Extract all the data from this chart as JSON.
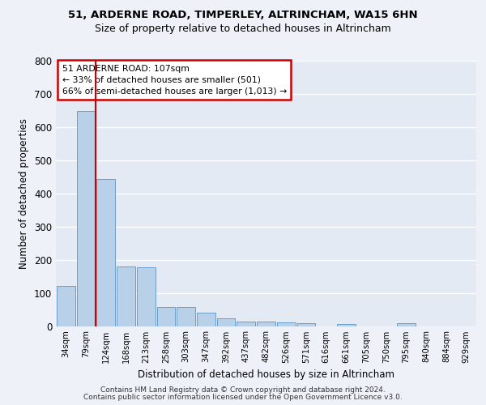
{
  "title1": "51, ARDERNE ROAD, TIMPERLEY, ALTRINCHAM, WA15 6HN",
  "title2": "Size of property relative to detached houses in Altrincham",
  "xlabel": "Distribution of detached houses by size in Altrincham",
  "ylabel": "Number of detached properties",
  "categories": [
    "34sqm",
    "79sqm",
    "124sqm",
    "168sqm",
    "213sqm",
    "258sqm",
    "303sqm",
    "347sqm",
    "392sqm",
    "437sqm",
    "482sqm",
    "526sqm",
    "571sqm",
    "616sqm",
    "661sqm",
    "705sqm",
    "750sqm",
    "795sqm",
    "840sqm",
    "884sqm",
    "929sqm"
  ],
  "values": [
    122,
    648,
    443,
    179,
    178,
    58,
    57,
    40,
    22,
    13,
    13,
    11,
    8,
    0,
    6,
    0,
    0,
    8,
    0,
    0,
    0
  ],
  "bar_color": "#b8d0e8",
  "bar_edge_color": "#6a9ec8",
  "vline_x": 1.5,
  "vline_color": "#cc0000",
  "annotation_line1": "51 ARDERNE ROAD: 107sqm",
  "annotation_line2": "← 33% of detached houses are smaller (501)",
  "annotation_line3": "66% of semi-detached houses are larger (1,013) →",
  "annotation_box_color": "#cc0000",
  "footer1": "Contains HM Land Registry data © Crown copyright and database right 2024.",
  "footer2": "Contains public sector information licensed under the Open Government Licence v3.0.",
  "bg_color": "#eef2f8",
  "plot_bg_color": "#e4eaf4",
  "grid_color": "#ffffff",
  "ylim": [
    0,
    800
  ],
  "yticks": [
    0,
    100,
    200,
    300,
    400,
    500,
    600,
    700,
    800
  ]
}
